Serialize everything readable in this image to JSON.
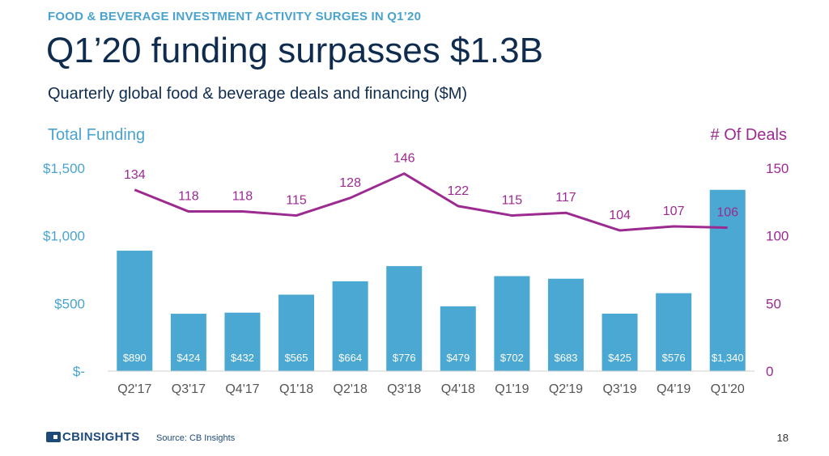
{
  "header": {
    "kicker": "FOOD & BEVERAGE INVESTMENT ACTIVITY SURGES IN Q1’20",
    "title": "Q1’20 funding surpasses $1.3B",
    "subtitle": "Quarterly global food & beverage deals and financing ($M)"
  },
  "footer": {
    "logo": "CBINSIGHTS",
    "source": "Source: CB Insights",
    "page": "18"
  },
  "colors": {
    "bar": "#4aa8d2",
    "line": "#9c2a91",
    "left_axis": "#4aa3cf",
    "right_axis": "#9c2a91"
  },
  "chart_data": {
    "type": "bar",
    "categories": [
      "Q2'17",
      "Q3'17",
      "Q4'17",
      "Q1'18",
      "Q2'18",
      "Q3'18",
      "Q4'18",
      "Q1'19",
      "Q2'19",
      "Q3'19",
      "Q4'19",
      "Q1'20"
    ],
    "series": [
      {
        "name": "Total Funding",
        "type": "bar",
        "axis": "left",
        "values": [
          890,
          424,
          432,
          565,
          664,
          776,
          479,
          702,
          683,
          425,
          576,
          1340
        ],
        "labels": [
          "$890",
          "$424",
          "$432",
          "$565",
          "$664",
          "$776",
          "$479",
          "$702",
          "$683",
          "$425",
          "$576",
          "$1,340"
        ]
      },
      {
        "name": "# Of Deals",
        "type": "line",
        "axis": "right",
        "values": [
          134,
          118,
          118,
          115,
          128,
          146,
          122,
          115,
          117,
          104,
          107,
          106
        ]
      }
    ],
    "left_axis": {
      "label": "Total Funding",
      "ylim": [
        0,
        1500
      ],
      "ticks": [
        0,
        500,
        1000,
        1500
      ],
      "tick_labels": [
        "$-",
        "$500",
        "$1,000",
        "$1,500"
      ]
    },
    "right_axis": {
      "label": "# Of Deals",
      "ylim": [
        0,
        150
      ],
      "ticks": [
        0,
        50,
        100,
        150
      ],
      "tick_labels": [
        "0",
        "50",
        "100",
        "150"
      ]
    },
    "grid": false
  }
}
